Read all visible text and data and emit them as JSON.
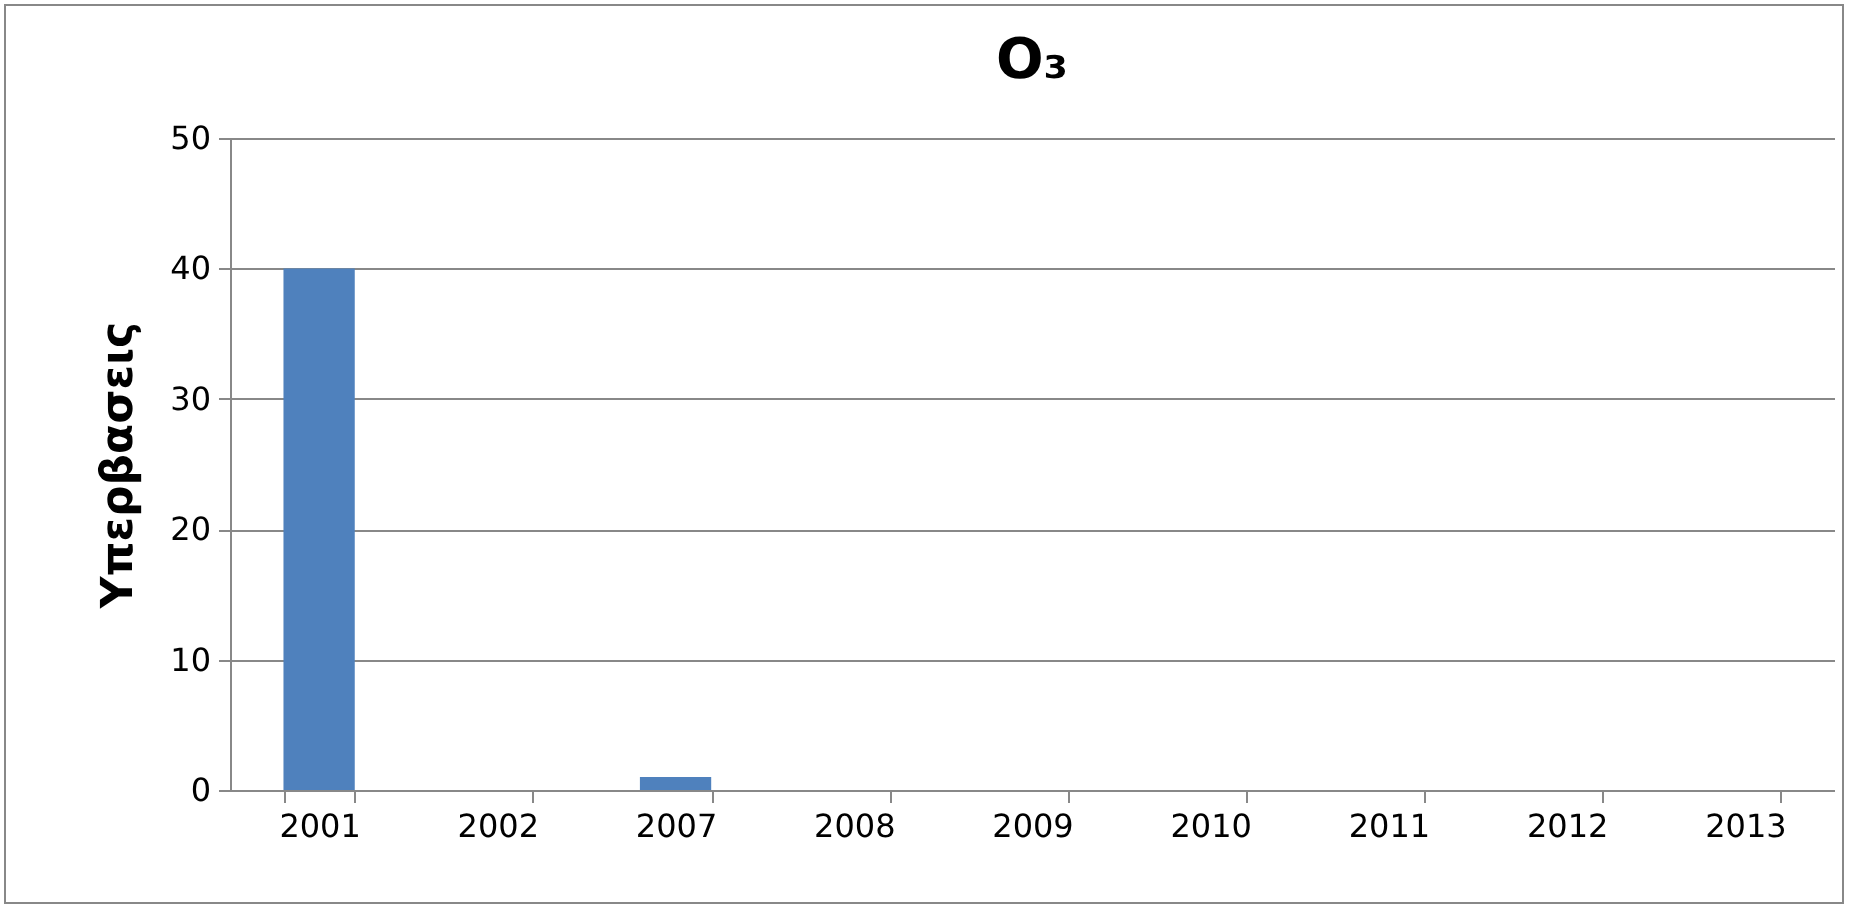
{
  "chart_data": {
    "type": "bar",
    "title": "O₃",
    "ylabel": "Υπερβασεις",
    "categories": [
      "2001",
      "2002",
      "2007",
      "2008",
      "2009",
      "2010",
      "2011",
      "2012",
      "2013"
    ],
    "values": [
      40,
      0,
      1,
      0,
      0,
      0,
      0,
      0,
      0
    ],
    "color": "#4f81bd",
    "ylim": [
      0,
      50
    ],
    "yticks": [
      0,
      10,
      20,
      30,
      40,
      50
    ],
    "grid": "y"
  }
}
